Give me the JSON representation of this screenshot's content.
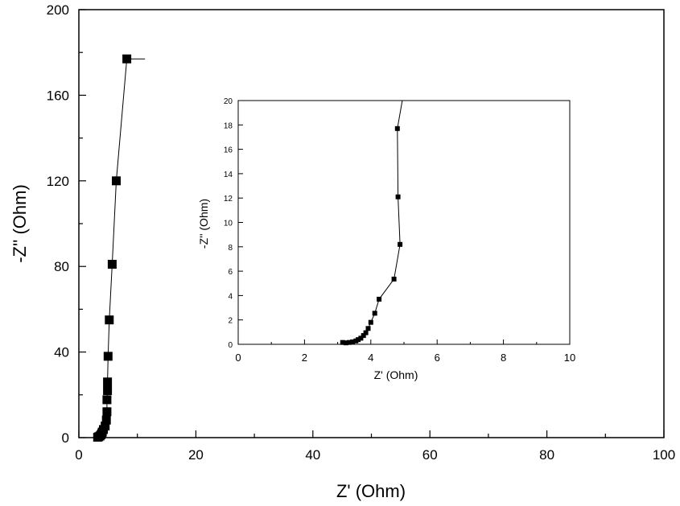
{
  "chart_data": [
    {
      "type": "scatter",
      "panel": "main",
      "xlabel": "Z' (Ohm)",
      "ylabel": "-Z'' (Ohm)",
      "xlim": [
        0,
        100
      ],
      "ylim": [
        0,
        200
      ],
      "x_ticks": [
        0,
        20,
        40,
        60,
        80,
        100
      ],
      "y_ticks": [
        0,
        40,
        80,
        120,
        160,
        200
      ],
      "x_tick_labels": [
        "0",
        "20",
        "40",
        "60",
        "80",
        "100"
      ],
      "y_tick_labels": [
        "0",
        "40",
        "80",
        "120",
        "160",
        "200"
      ],
      "connected": true,
      "marker": "square",
      "series": [
        {
          "x": [
            3.2,
            3.4,
            3.6,
            3.8,
            3.9,
            4.0,
            4.2,
            4.5,
            4.7,
            4.8,
            4.8,
            4.9,
            4.9,
            5.0,
            5.2,
            5.7,
            6.4,
            8.2,
            11.3
          ],
          "y": [
            0.2,
            0.4,
            0.8,
            1.3,
            1.9,
            2.6,
            3.8,
            5.4,
            8.2,
            12.1,
            17.7,
            22.0,
            26.0,
            38.0,
            55.0,
            81.0,
            120.0,
            177.0,
            177.0
          ]
        }
      ]
    },
    {
      "type": "scatter",
      "panel": "inset",
      "xlabel": "Z' (Ohm)",
      "ylabel": "-Z'' (Ohm)",
      "xlim": [
        0,
        10
      ],
      "ylim": [
        0,
        20
      ],
      "x_ticks": [
        0,
        2,
        4,
        6,
        8,
        10
      ],
      "y_ticks": [
        0,
        2,
        4,
        6,
        8,
        10,
        12,
        14,
        16,
        18,
        20
      ],
      "x_tick_labels": [
        "0",
        "2",
        "4",
        "6",
        "8",
        "10"
      ],
      "y_tick_labels": [
        "0",
        "2",
        "4",
        "6",
        "8",
        "10",
        "12",
        "14",
        "16",
        "18",
        "20"
      ],
      "connected": true,
      "marker": "square",
      "series": [
        {
          "x": [
            3.15,
            3.25,
            3.35,
            3.45,
            3.55,
            3.62,
            3.7,
            3.78,
            3.85,
            3.92,
            4.0,
            4.12,
            4.25,
            4.7,
            4.88,
            4.82,
            4.8,
            4.95
          ],
          "y": [
            0.15,
            0.12,
            0.15,
            0.2,
            0.28,
            0.38,
            0.5,
            0.72,
            0.95,
            1.3,
            1.8,
            2.55,
            3.7,
            5.35,
            8.2,
            12.1,
            17.7,
            20.0
          ]
        }
      ]
    }
  ]
}
